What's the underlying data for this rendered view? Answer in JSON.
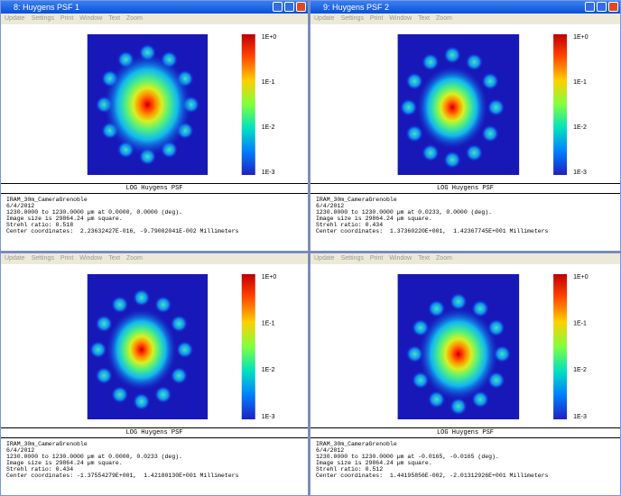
{
  "windows": [
    {
      "title": "8: Huygens PSF 1",
      "menu": [
        "Update",
        "Settings",
        "Print",
        "Window",
        "Text",
        "Zoom"
      ],
      "colorbar_labels": [
        "1E+0",
        "1E-1",
        "1E-2",
        "1E-3"
      ],
      "plot_label": "LOG Huygens PSF",
      "info": [
        "IRAM_30m_CameraGrenoble",
        "6/4/2012",
        "1230.0000 to 1230.0000 µm at 0.0000, 0.0000 (deg).",
        "Image size is 29864.24 µm square.",
        "Strehl ratio: 0.518",
        "Center coordinates:  2.23632427E-016, -9.79002041E-002 Millimeters"
      ]
    },
    {
      "title": "9: Huygens PSF 2",
      "menu": [
        "Update",
        "Settings",
        "Print",
        "Window",
        "Text",
        "Zoom"
      ],
      "colorbar_labels": [
        "1E+0",
        "1E-1",
        "1E-2",
        "1E-3"
      ],
      "plot_label": "LOG Huygens PSF",
      "info": [
        "IRAM_30m_CameraGrenoble",
        "6/4/2012",
        "1230.0000 to 1230.0000 µm at 0.0233, 0.0000 (deg).",
        "Image size is 29864.24 µm square.",
        "Strehl ratio: 0.434",
        "Center coordinates:  1.37360220E+001,  1.42367745E+001 Millimeters"
      ]
    },
    {
      "menu": [
        "Update",
        "Settings",
        "Print",
        "Window",
        "Text",
        "Zoom"
      ],
      "colorbar_labels": [
        "1E+0",
        "1E-1",
        "1E-2",
        "1E-3"
      ],
      "plot_label": "LOG Huygens PSF",
      "info": [
        "IRAM_30m_CameraGrenoble",
        "6/4/2012",
        "1230.0000 to 1230.0000 µm at 0.0000, 0.0233 (deg).",
        "Image size is 29864.24 µm square.",
        "Strehl ratio: 0.434",
        "Center coordinates: -1.37554279E+001,  1.42180130E+001 Millimeters"
      ]
    },
    {
      "menu": [
        "Update",
        "Settings",
        "Print",
        "Window",
        "Text",
        "Zoom"
      ],
      "colorbar_labels": [
        "1E+0",
        "1E-1",
        "1E-2",
        "1E-3"
      ],
      "plot_label": "LOG Huygens PSF",
      "info": [
        "IRAM_30m_CameraGrenoble",
        "6/4/2012",
        "1230.0000 to 1230.0000 µm at -0.0165, -0.0165 (deg).",
        "Image size is 29864.24 µm square.",
        "Strehl ratio: 0.512",
        "Center coordinates:  1.44195856E-002, -2.01312926E+001 Millimeters"
      ]
    }
  ]
}
